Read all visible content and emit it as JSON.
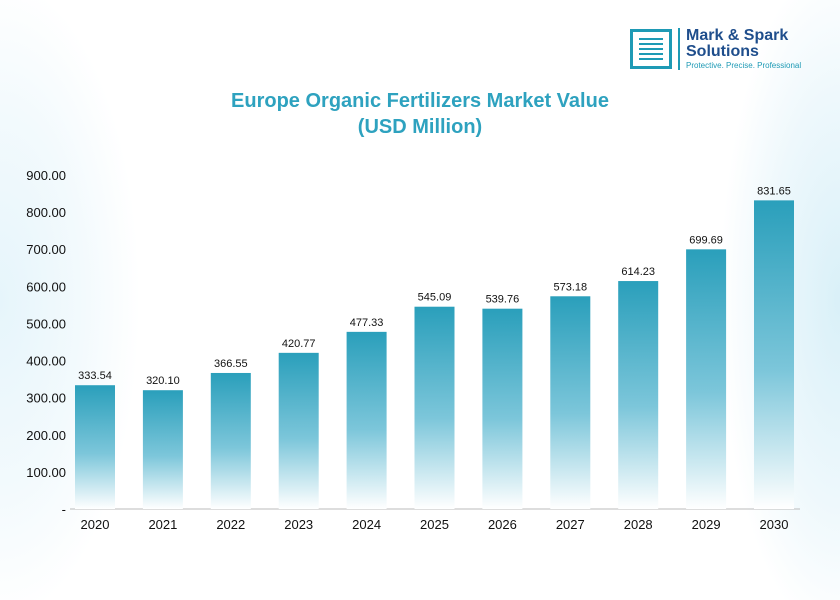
{
  "logo": {
    "name_line1": "Mark & Spark",
    "name_line2": "Solutions",
    "tagline": "Protective. Precise. Professional"
  },
  "colors": {
    "title": "#2ea2bf",
    "bar_top": "#2a9fbb",
    "bar_bottom": "#ffffff"
  },
  "chart_data": {
    "type": "bar",
    "title": "Europe Organic Fertilizers Market Value",
    "subtitle": "(USD Million)",
    "categories": [
      "2020",
      "2021",
      "2022",
      "2023",
      "2024",
      "2025",
      "2026",
      "2027",
      "2028",
      "2029",
      "2030"
    ],
    "values": [
      333.54,
      320.1,
      366.55,
      420.77,
      477.33,
      545.09,
      539.76,
      573.18,
      614.23,
      699.69,
      831.65
    ],
    "data_labels": [
      "333.54",
      "320.10",
      "366.55",
      "420.77",
      "477.33",
      "545.09",
      "539.76",
      "573.18",
      "614.23",
      "699.69",
      "831.65"
    ],
    "ylim": [
      0,
      900
    ],
    "y_ticks": [
      "-",
      "100.00",
      "200.00",
      "300.00",
      "400.00",
      "500.00",
      "600.00",
      "700.00",
      "800.00",
      "900.00"
    ],
    "grid": false,
    "legend": "none"
  }
}
